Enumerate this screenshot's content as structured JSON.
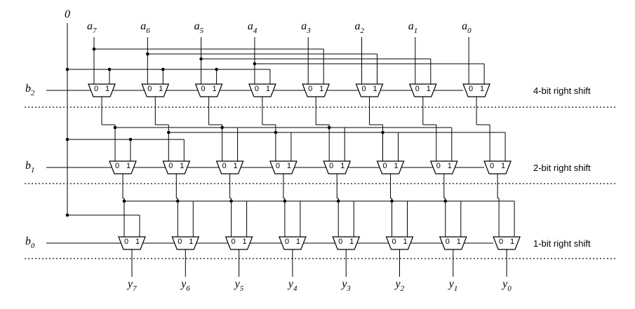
{
  "diagram": {
    "zero_label": "0",
    "mux_pin_0": "0",
    "mux_pin_1": "1",
    "inputs": [
      {
        "base": "a",
        "sub": "7"
      },
      {
        "base": "a",
        "sub": "6"
      },
      {
        "base": "a",
        "sub": "5"
      },
      {
        "base": "a",
        "sub": "4"
      },
      {
        "base": "a",
        "sub": "3"
      },
      {
        "base": "a",
        "sub": "2"
      },
      {
        "base": "a",
        "sub": "1"
      },
      {
        "base": "a",
        "sub": "0"
      }
    ],
    "outputs": [
      {
        "base": "y",
        "sub": "7"
      },
      {
        "base": "y",
        "sub": "6"
      },
      {
        "base": "y",
        "sub": "5"
      },
      {
        "base": "y",
        "sub": "4"
      },
      {
        "base": "y",
        "sub": "3"
      },
      {
        "base": "y",
        "sub": "2"
      },
      {
        "base": "y",
        "sub": "1"
      },
      {
        "base": "y",
        "sub": "0"
      }
    ],
    "stages": [
      {
        "select": {
          "base": "b",
          "sub": "2"
        },
        "label": "4-bit right shift",
        "shift": 4
      },
      {
        "select": {
          "base": "b",
          "sub": "1"
        },
        "label": "2-bit right shift",
        "shift": 2
      },
      {
        "select": {
          "base": "b",
          "sub": "0"
        },
        "label": "1-bit right shift",
        "shift": 1
      }
    ]
  }
}
